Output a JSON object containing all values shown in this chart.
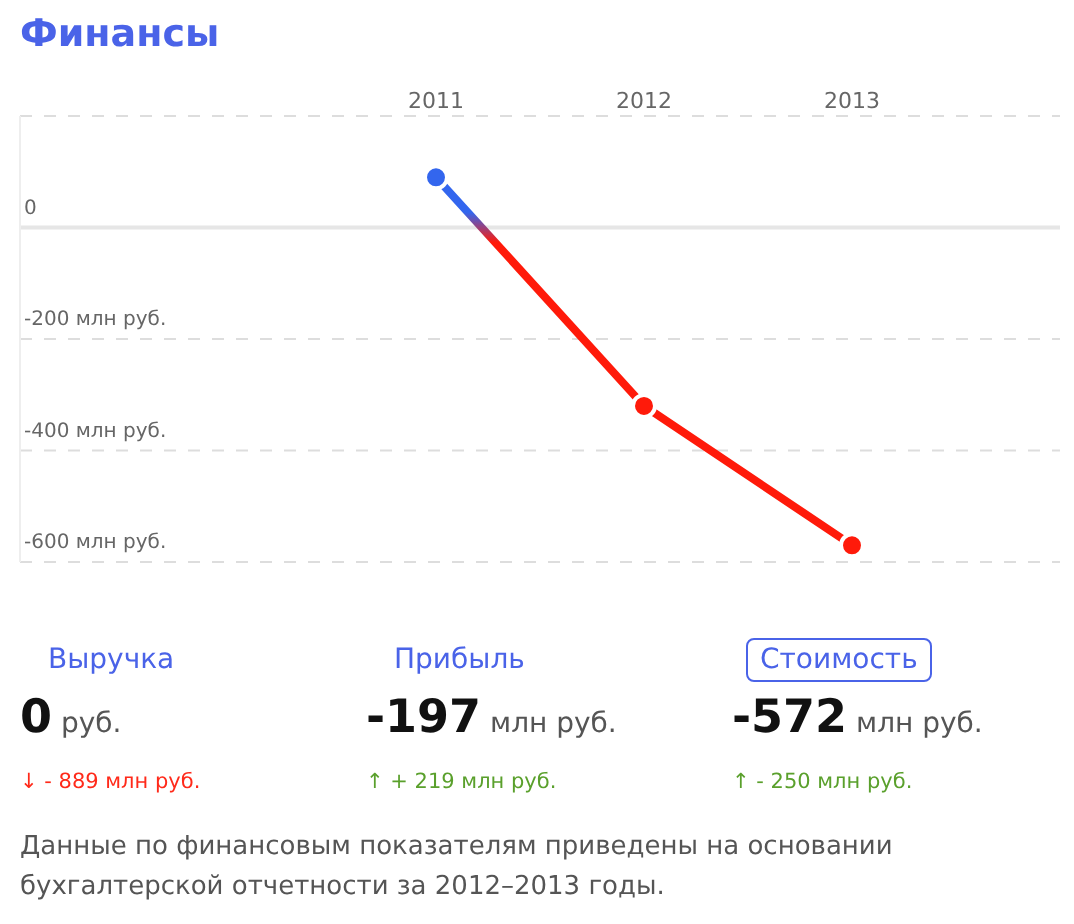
{
  "chart_data": {
    "type": "line",
    "title": "Финансы",
    "x": [
      2011,
      2012,
      2013
    ],
    "xlim": [
      2009,
      2014
    ],
    "xticks": [
      2011,
      2012,
      2013
    ],
    "ylim": [
      -600,
      200
    ],
    "yticks": [
      {
        "value": 200,
        "label": null
      },
      {
        "value": 0,
        "label": "0"
      },
      {
        "value": -200,
        "label": "-200 млн руб."
      },
      {
        "value": -400,
        "label": "-400 млн руб."
      },
      {
        "value": -600,
        "label": "-600 млн руб."
      }
    ],
    "series": [
      {
        "color": "#ff1a0a",
        "colors": [
          "#3366ee",
          "#ff1a0a",
          "#ff1a0a"
        ],
        "values": [
          90,
          -320,
          -570
        ]
      }
    ],
    "grid": "y",
    "marker": "circle",
    "line_style": "solid",
    "ref_lines": [
      {
        "axis": "y",
        "value": 0,
        "color": "#e6e6e6",
        "line_style": "solid"
      }
    ],
    "annotations": [
      "Выручка",
      "Прибыль",
      "Стоимость",
      "0 руб.",
      "-197 млн руб.",
      "-572 млн руб.",
      "↓ - 889 млн руб.",
      "↑ + 219 млн руб.",
      "↑ - 250 млн руб.",
      "Данные по финансовым показателям приведены на основании бухгалтерской отчетности за 2012–2013 годы."
    ]
  }
}
